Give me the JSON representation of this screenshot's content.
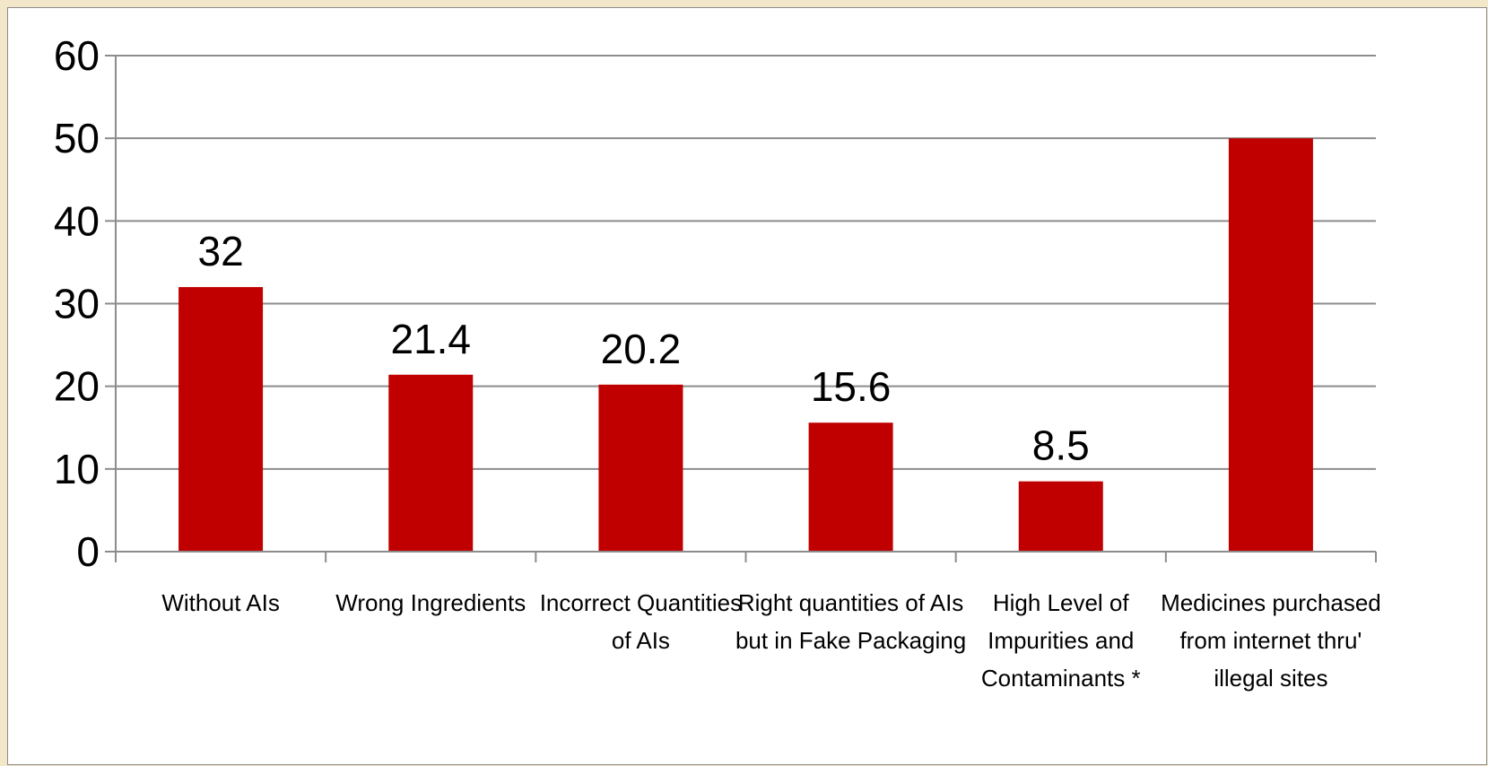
{
  "chart_data": {
    "type": "bar",
    "categories": [
      [
        "Without AIs"
      ],
      [
        "Wrong Ingredients"
      ],
      [
        "Incorrect Quantities",
        "of AIs"
      ],
      [
        "Right quantities  of AIs",
        "but in  Fake Packaging"
      ],
      [
        "High Level of",
        "Impurities and",
        "Contaminants  *"
      ],
      [
        "Medicines purchased",
        "from internet thru'",
        "illegal sites"
      ]
    ],
    "values": [
      32,
      21.4,
      20.2,
      15.6,
      8.5,
      50
    ],
    "data_labels": [
      "32",
      "21.4",
      "20.2",
      "15.6",
      "8.5",
      ""
    ],
    "title": "",
    "xlabel": "",
    "ylabel": "",
    "ylim": [
      0,
      60
    ],
    "yticks": [
      0,
      10,
      20,
      30,
      40,
      50,
      60
    ],
    "grid": true,
    "bar_color": "#c00000",
    "grid_color": "#8c8c8c",
    "frame_background": "#ffffff",
    "page_background": "#f3e7c9"
  }
}
